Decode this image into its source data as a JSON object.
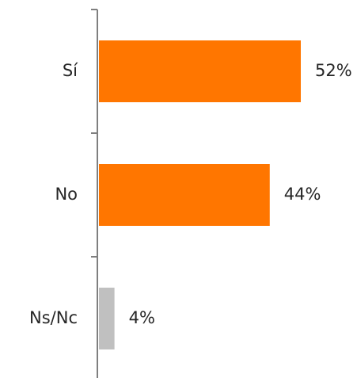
{
  "chart_data": {
    "type": "bar",
    "orientation": "horizontal",
    "categories": [
      "Sí",
      "No",
      "Ns/Nc"
    ],
    "values": [
      52,
      44,
      4
    ],
    "value_labels": [
      "52%",
      "44%",
      "4%"
    ],
    "colors": [
      "#ff7600",
      "#ff7600",
      "#c0c0c0"
    ],
    "axis_color": "#7f7f7f",
    "text_color": "#262626",
    "xlim": [
      0,
      60
    ],
    "grid": false,
    "title": "",
    "xlabel": "",
    "ylabel": ""
  }
}
